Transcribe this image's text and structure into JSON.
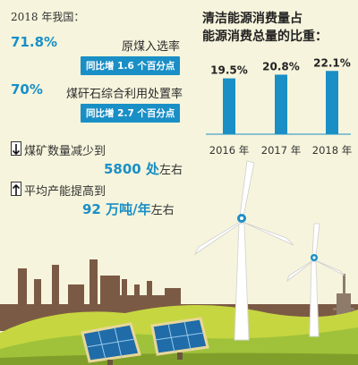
{
  "header": {
    "year_title": "2018 年我国："
  },
  "stats": [
    {
      "value": "71.8%",
      "label": "原煤入选率",
      "badge": "同比增 1.6 个百分点"
    },
    {
      "value": "70%",
      "label": "煤矸石综合利用处置率",
      "badge": "同比增 2.7 个百分点"
    }
  ],
  "mines": {
    "label": "煤矿数量减少到",
    "value": "5800 处",
    "suffix": "左右",
    "arrow_icon": "down-arrow-icon"
  },
  "capacity": {
    "label": "平均产能提高到",
    "value": "92 万吨/年",
    "suffix": "左右",
    "arrow_icon": "up-arrow-icon"
  },
  "colors": {
    "accent": "#1a8fc6",
    "background": "#f6f4dc",
    "hill": "#9fc23a",
    "factory": "#7b5a45"
  },
  "chart_data": {
    "type": "bar",
    "title": "清洁能源消费量占能源消费总量的比重：",
    "title_line1": "清洁能源消费量占",
    "title_line2": "能源消费总量的比重：",
    "categories": [
      "2016 年",
      "2017 年",
      "2018 年"
    ],
    "values": [
      19.5,
      20.8,
      22.1
    ],
    "value_labels": [
      "19.5%",
      "20.8%",
      "22.1%"
    ],
    "unit": "%",
    "ylim": [
      0,
      25
    ],
    "grid": false,
    "bar_color": "#1a8fc6"
  }
}
